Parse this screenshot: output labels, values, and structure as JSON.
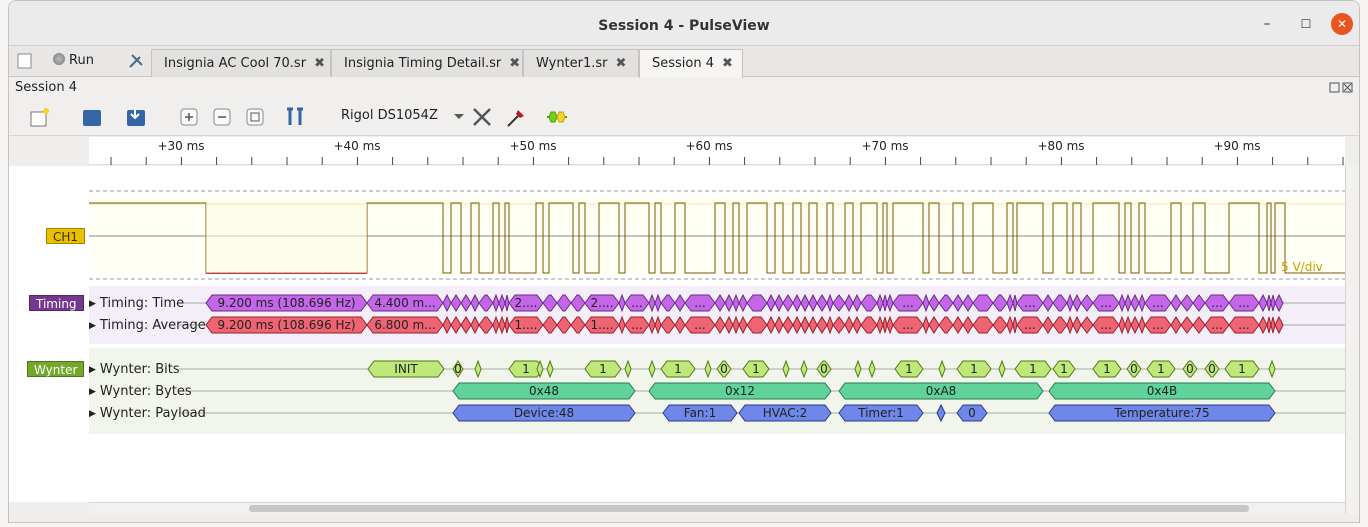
{
  "window": {
    "title": "Session 4 - PulseView",
    "min": "–",
    "max": "☐",
    "close": "✕"
  },
  "tabs": [
    {
      "label": "Insignia AC Cool 70.sr",
      "close": "✖"
    },
    {
      "label": "Insignia Timing Detail.sr",
      "close": "✖"
    },
    {
      "label": "Wynter1.sr",
      "close": "✖"
    },
    {
      "label": "Session 4",
      "close": "✖"
    }
  ],
  "run_label": "Run",
  "session_label": "Session 4",
  "toolbar": {
    "device": "Rigol DS1054Z"
  },
  "ruler": {
    "ticks": [
      "+30 ms",
      "+40 ms",
      "+50 ms",
      "+60 ms",
      "+70 ms",
      "+80 ms",
      "+90 ms"
    ]
  },
  "channels": {
    "ch1": {
      "label": "CH1",
      "color": "#c4a000",
      "scale": "5 V/div"
    },
    "timing": {
      "label": "Timing",
      "color": "#75378f",
      "rows": [
        "Timing: Time",
        "Timing: Average"
      ]
    },
    "wynter": {
      "label": "Wynter",
      "color": "#6f9c1e",
      "rows": [
        "Wynter: Bits",
        "Wynter: Bytes",
        "Wynter: Payload"
      ]
    }
  },
  "timing_time": [
    "9.200 ms (108.696 Hz)",
    "4.400 m...",
    "2....",
    "2...."
  ],
  "timing_avg": [
    "9.200 ms (108.696 Hz)",
    "6.800 m...",
    "1....",
    "1...."
  ],
  "bits": [
    "INIT",
    "0",
    "1",
    "1",
    "1",
    "0",
    "1",
    "0",
    "1",
    "1",
    "1",
    "1",
    "1",
    "0",
    "1",
    "0",
    "0",
    "1"
  ],
  "bytes": [
    "0x48",
    "0x12",
    "0xA8",
    "0x4B"
  ],
  "payload": [
    "Device:48",
    "Fan:1",
    "HVAC:2",
    "Timer:1",
    "0",
    "Temperature:75"
  ]
}
